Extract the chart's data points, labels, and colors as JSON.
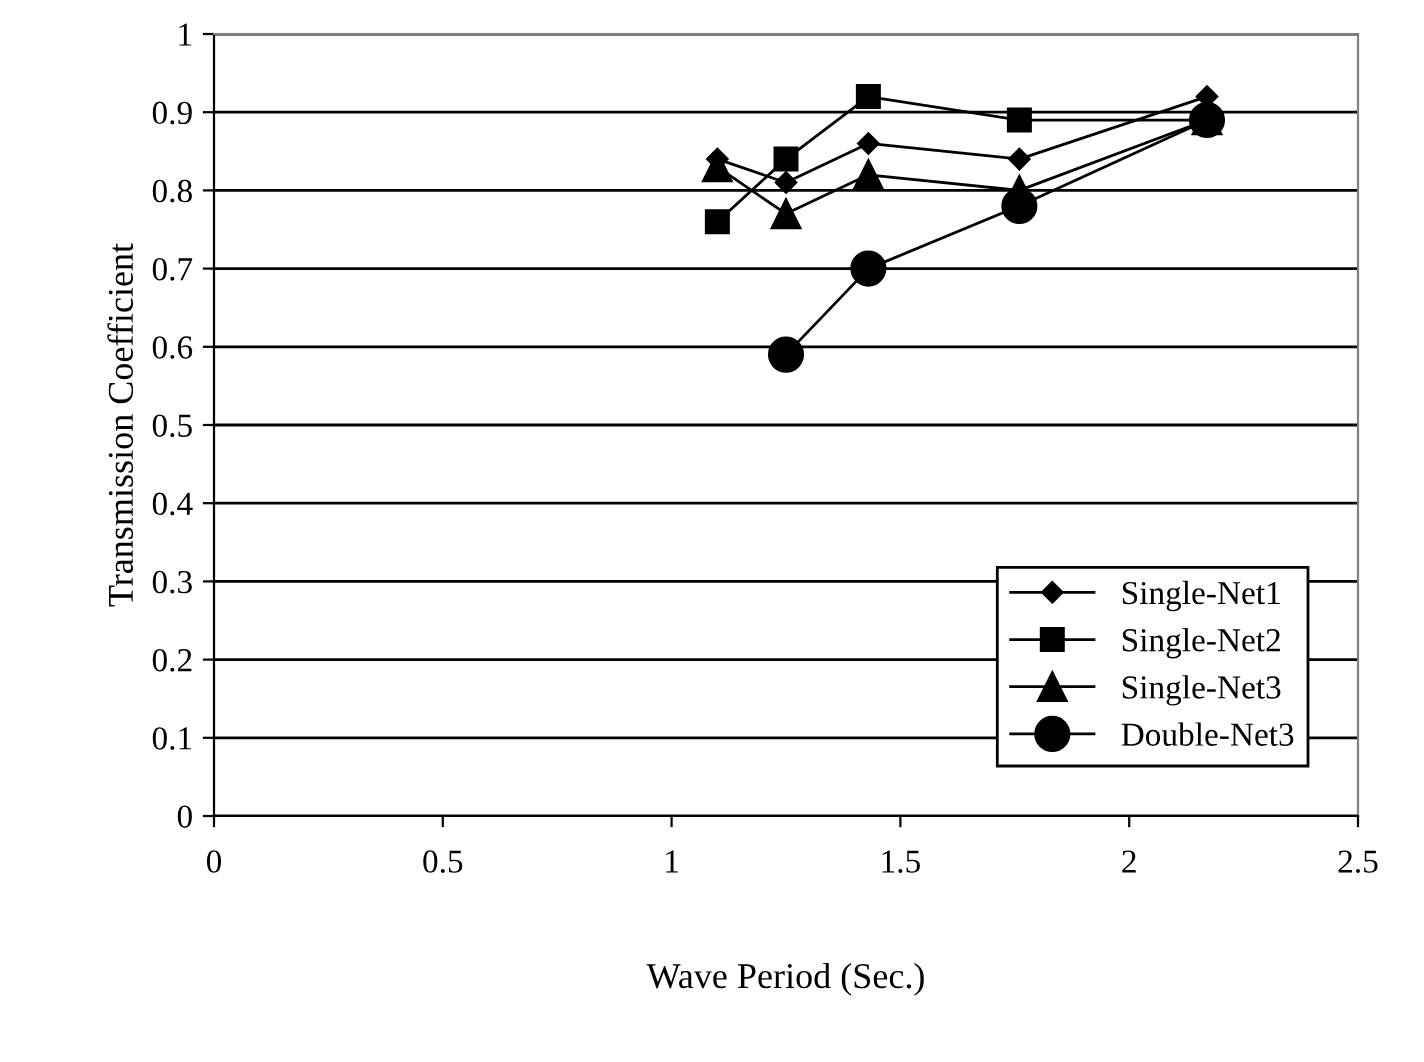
{
  "chart_data": {
    "type": "line",
    "xlabel": "Wave Period (Sec.)",
    "ylabel": "Transmission Coefficient",
    "series": [
      {
        "name": "Single-Net1",
        "color": "#000000",
        "marker": "diamond",
        "x": [
          1.1,
          1.25,
          1.43,
          1.76,
          2.17
        ],
        "values": [
          0.84,
          0.81,
          0.86,
          0.84,
          0.92
        ]
      },
      {
        "name": "Single-Net2",
        "color": "#000000",
        "marker": "square",
        "x": [
          1.1,
          1.25,
          1.43,
          1.76,
          2.17
        ],
        "values": [
          0.76,
          0.84,
          0.92,
          0.89,
          0.89
        ]
      },
      {
        "name": "Single-Net3",
        "color": "#000000",
        "marker": "triangle",
        "x": [
          1.1,
          1.25,
          1.43,
          1.76,
          2.17
        ],
        "values": [
          0.83,
          0.77,
          0.82,
          0.8,
          0.89
        ]
      },
      {
        "name": "Double-Net3",
        "color": "#000000",
        "marker": "circle",
        "x": [
          1.25,
          1.43,
          1.76,
          2.17
        ],
        "values": [
          0.59,
          0.7,
          0.78,
          0.89
        ]
      }
    ],
    "xlim": [
      0,
      2.5
    ],
    "xticks": [
      0,
      0.5,
      1,
      1.5,
      2,
      2.5
    ],
    "ylim": [
      0,
      1
    ],
    "yticks": [
      0,
      0.1,
      0.2,
      0.3,
      0.4,
      0.5,
      0.6,
      0.7,
      0.8,
      0.9,
      1
    ],
    "grid": "y",
    "legend": "bottom right",
    "line_style": "solid"
  }
}
